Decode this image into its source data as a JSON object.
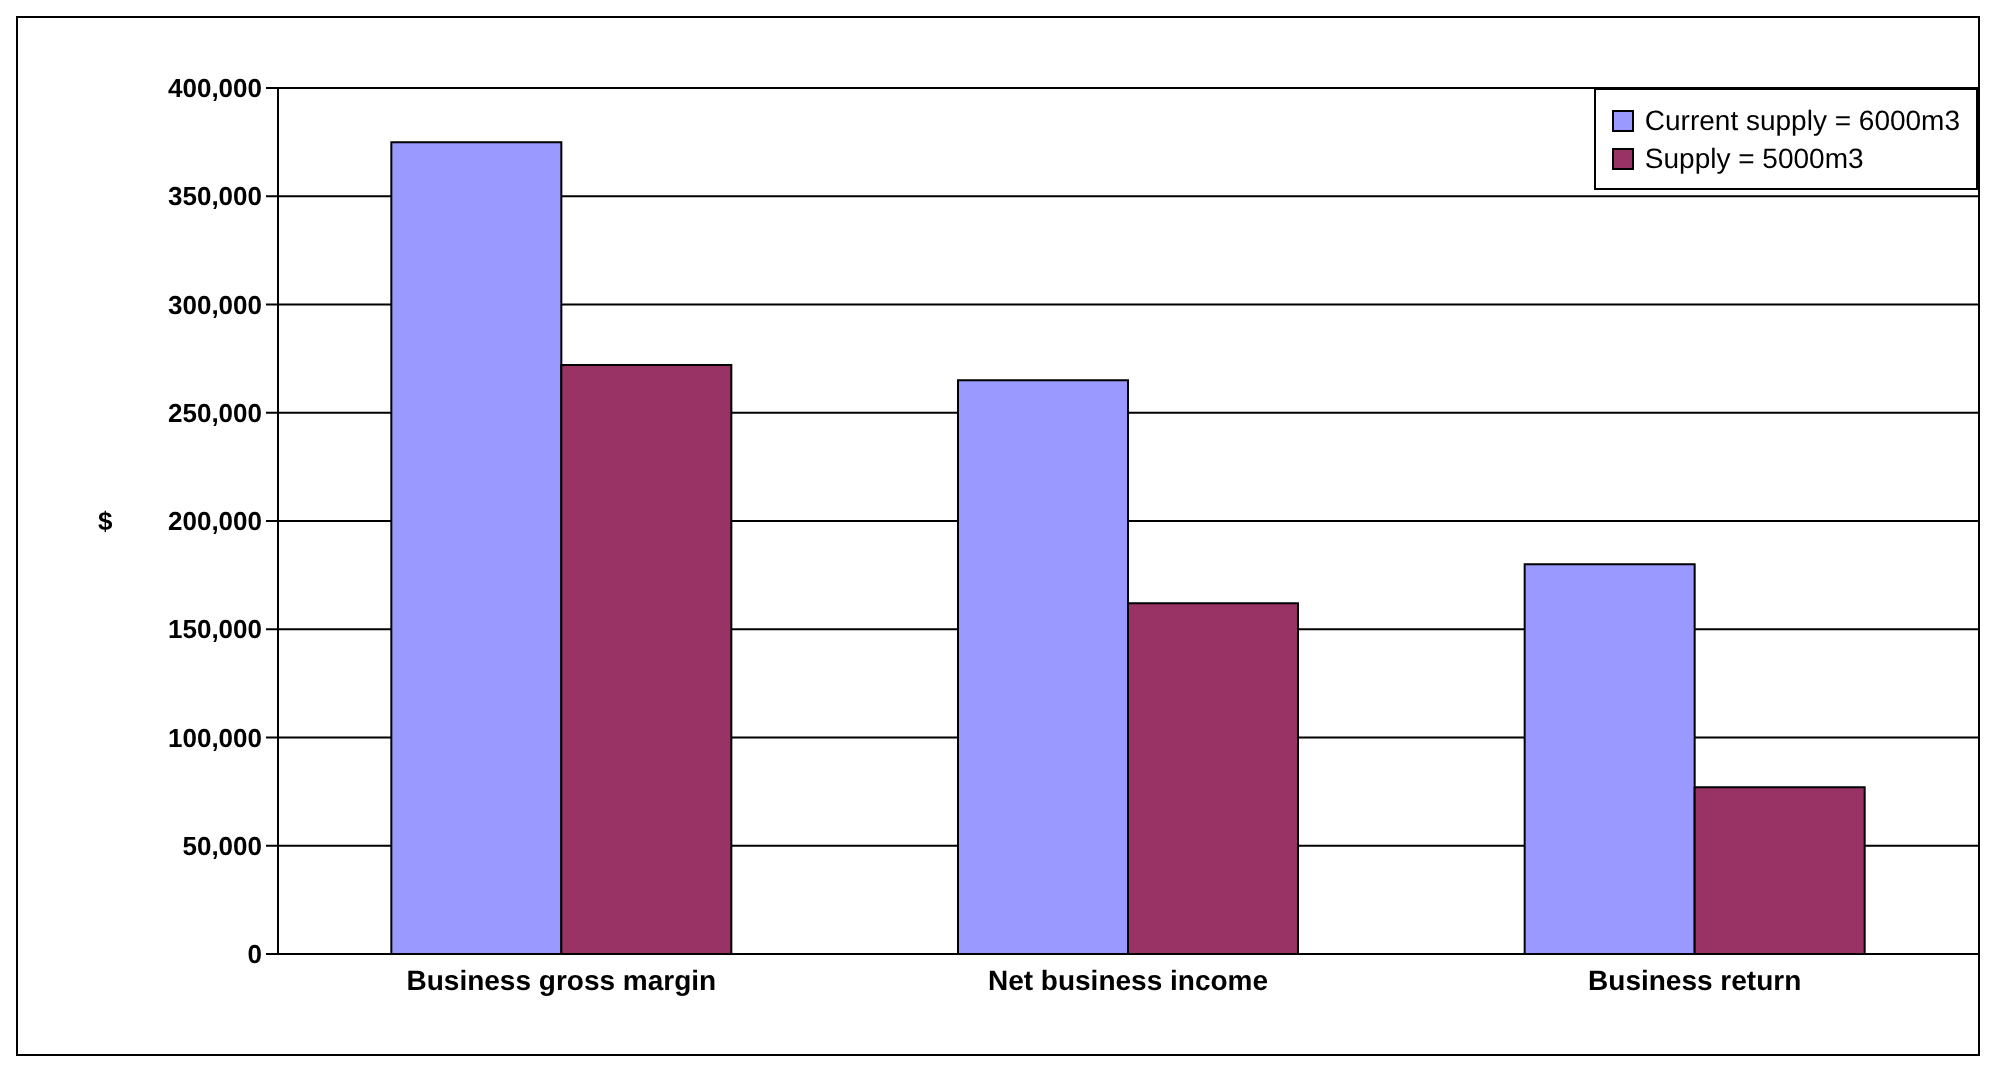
{
  "chart_data": {
    "type": "bar",
    "ylabel": "$",
    "categories": [
      "Business gross margin",
      "Net business income",
      "Business return"
    ],
    "series": [
      {
        "name": "Current supply = 6000m3",
        "color": "#9999ff",
        "values": [
          375000,
          265000,
          180000
        ]
      },
      {
        "name": "Supply = 5000m3",
        "color": "#993366",
        "values": [
          272000,
          162000,
          77000
        ]
      }
    ],
    "ylim": [
      0,
      400000
    ],
    "yticks": [
      0,
      {
        "value": 50000,
        "label": "50,000"
      },
      {
        "value": 100000,
        "label": "100,000"
      },
      {
        "value": 150000,
        "label": "150,000"
      },
      {
        "value": 200000,
        "label": "200,000"
      },
      {
        "value": 250000,
        "label": "250,000"
      },
      {
        "value": 300000,
        "label": "300,000"
      },
      {
        "value": 350000,
        "label": "350,000"
      },
      {
        "value": 400000,
        "label": "400,000"
      }
    ],
    "grid": "y",
    "legend": "top right"
  }
}
